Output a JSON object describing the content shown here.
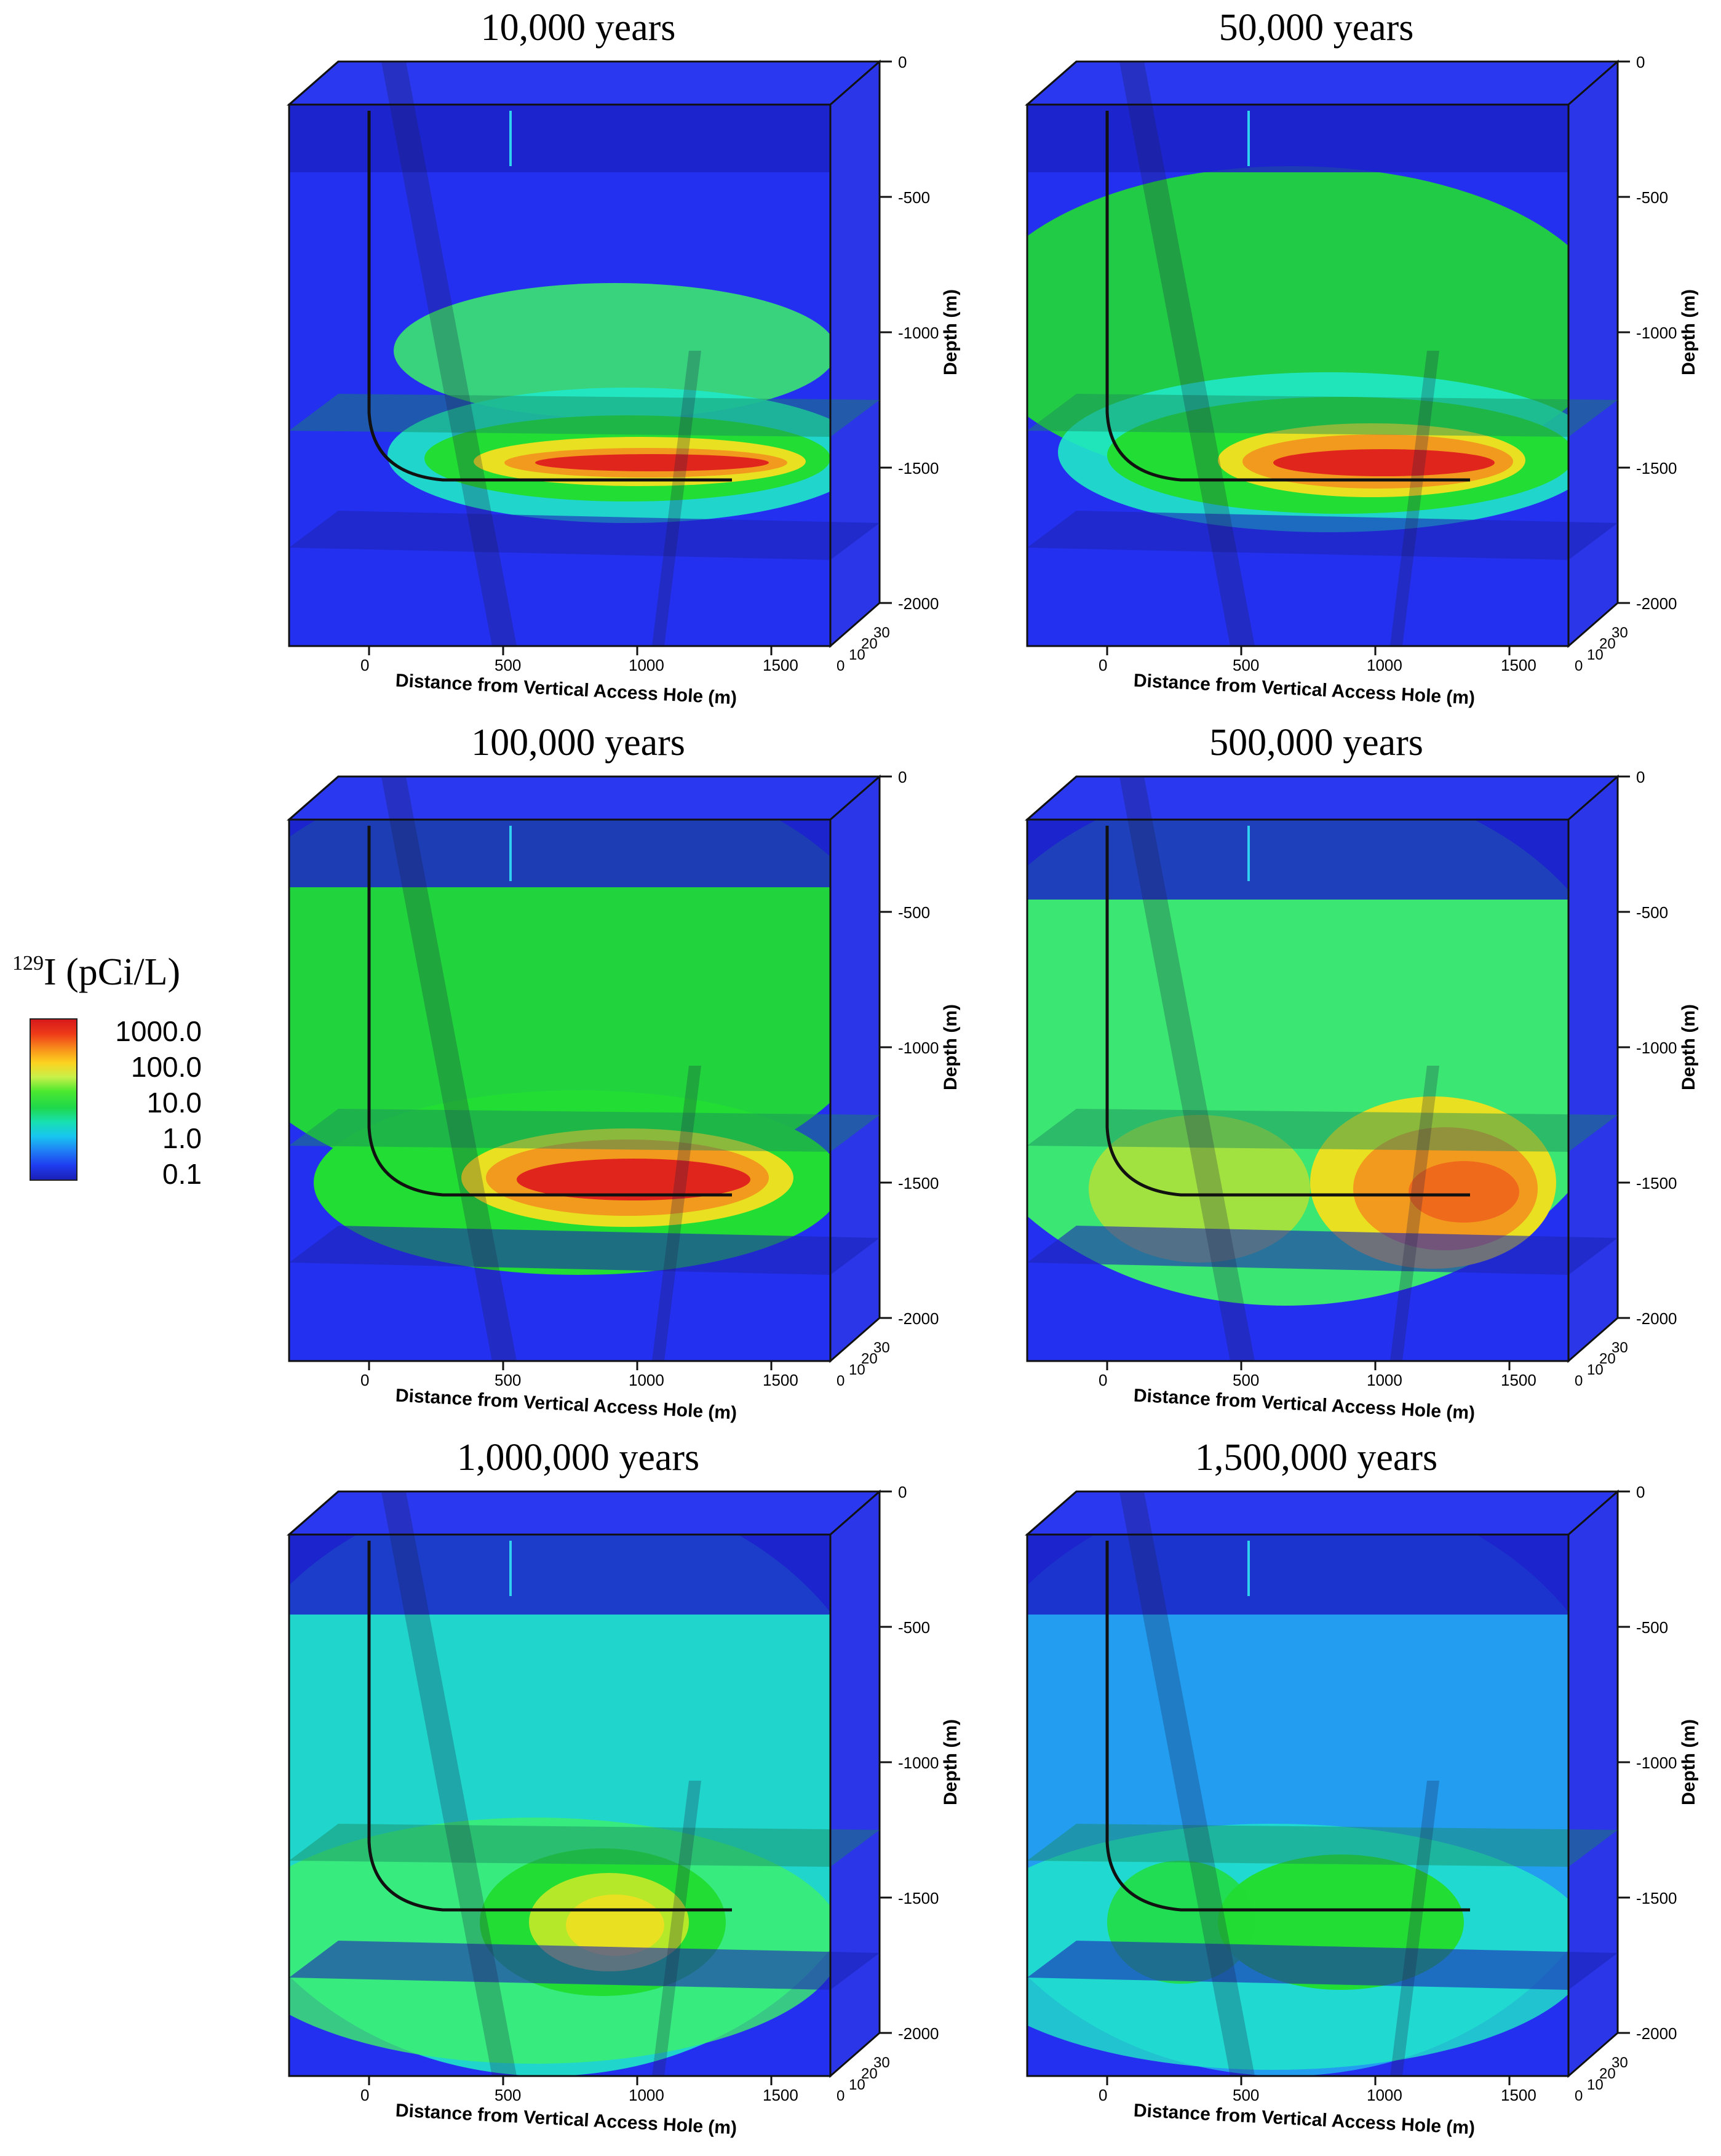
{
  "legend": {
    "title_super": "129",
    "title_main": "I (pCi/L)",
    "labels": [
      "1000.0",
      "100.0",
      "10.0",
      "1.0",
      "0.1"
    ]
  },
  "axes": {
    "x_label": "Distance from Vertical Access Hole (m)",
    "x_ticks": [
      "0",
      "500",
      "1000",
      "1500"
    ],
    "y_label": "Depth (m)",
    "y_ticks": [
      "0",
      "-500",
      "-1000",
      "-1500",
      "-2000"
    ],
    "z_ticks": [
      "0",
      "10",
      "20",
      "30"
    ]
  },
  "panels": [
    {
      "title": "10,000 years",
      "stage": 0
    },
    {
      "title": "50,000 years",
      "stage": 1
    },
    {
      "title": "100,000 years",
      "stage": 2
    },
    {
      "title": "500,000 years",
      "stage": 3
    },
    {
      "title": "1,000,000 years",
      "stage": 4
    },
    {
      "title": "1,500,000 years",
      "stage": 5
    }
  ],
  "colors": {
    "background_blue": "#2430f0",
    "deep_blue": "#1b22c8",
    "green": "#22dd33",
    "light_green": "#3df06a",
    "cyan": "#20e8c8",
    "light_blue": "#22aaf0",
    "yellow": "#e8e020",
    "orange": "#f29a1e",
    "red": "#e0261c"
  }
}
